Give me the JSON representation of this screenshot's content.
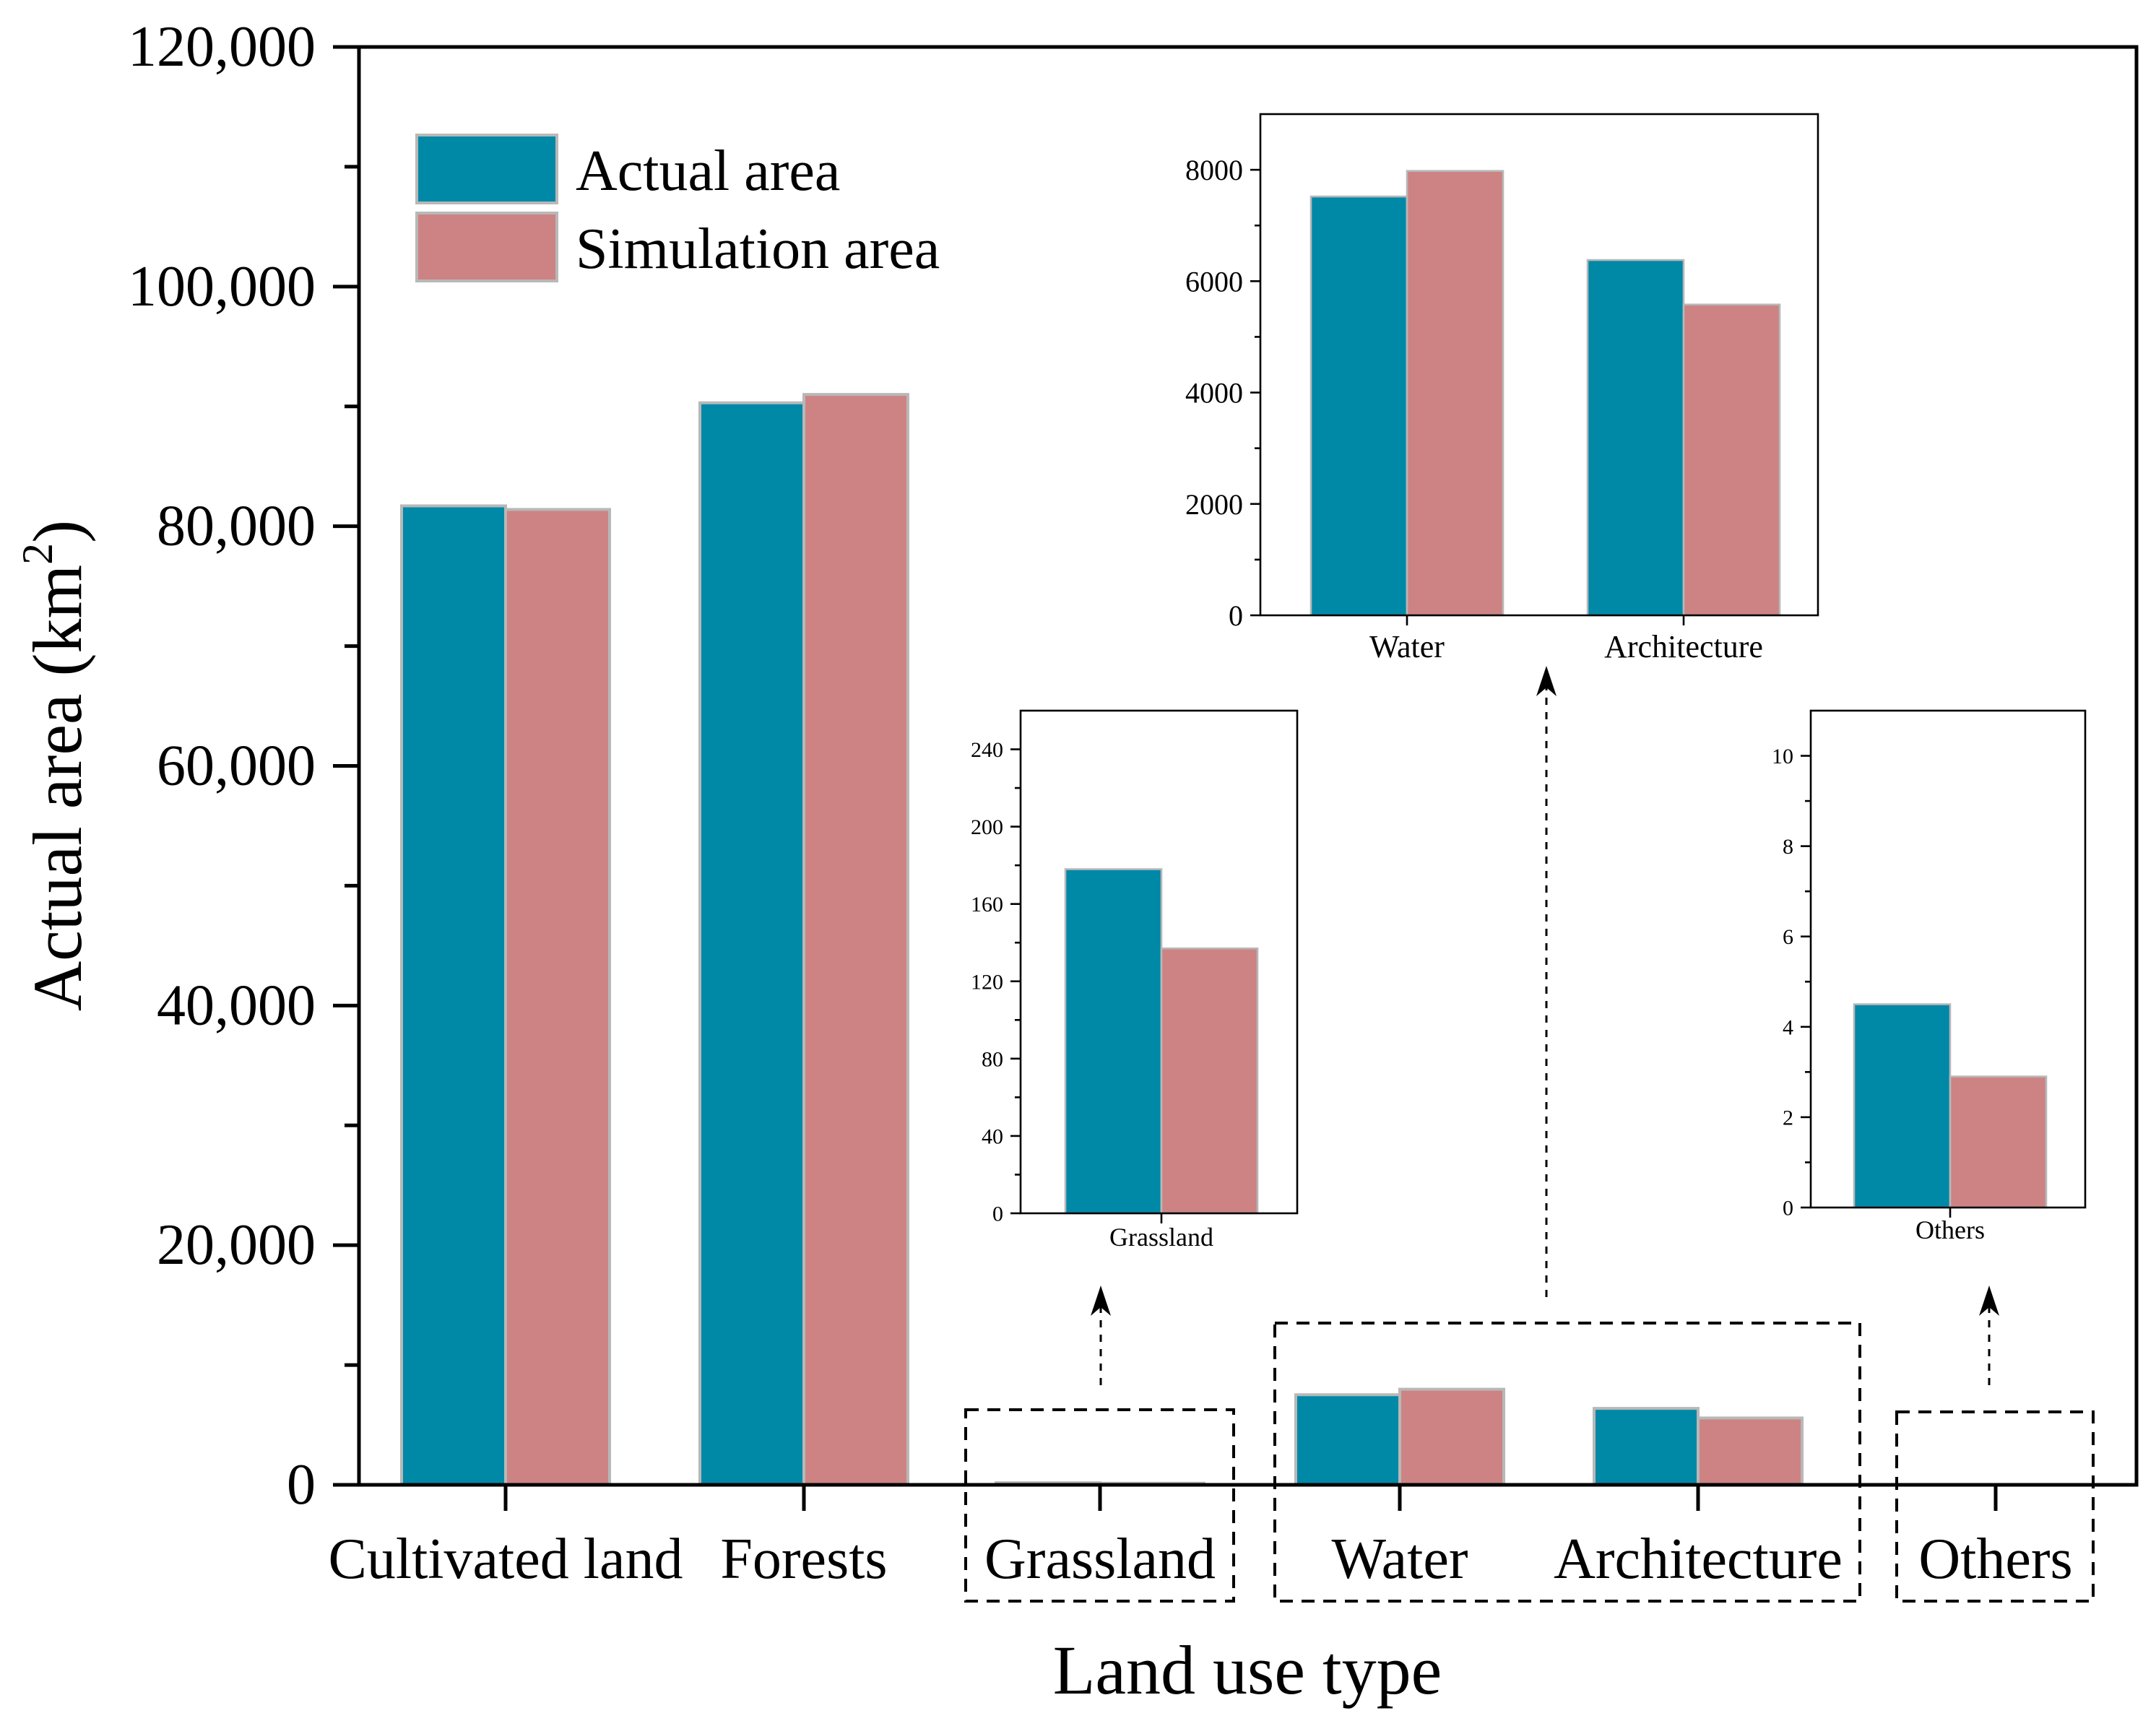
{
  "chart_data": {
    "type": "bar",
    "xlabel": "Land use type",
    "ylabel": "Actual area (km",
    "ylabel_superscript": "2",
    "ylabel_close": ")",
    "ylim": [
      0,
      120000
    ],
    "yticks": [
      0,
      20000,
      40000,
      60000,
      80000,
      100000,
      120000
    ],
    "ytick_labels": [
      "0",
      "20,000",
      "40,000",
      "60,000",
      "80,000",
      "100,000",
      "120,000"
    ],
    "categories": [
      "Cultivated land",
      "Forests",
      "Grassland",
      "Water",
      "Architecture",
      "Others"
    ],
    "series": [
      {
        "name": "Actual area",
        "color": "#0088a7",
        "values": [
          81700,
          90300,
          178,
          7520,
          6380,
          4.5
        ]
      },
      {
        "name": "Simulation area",
        "color": "#cd8383",
        "values": [
          81400,
          91000,
          137,
          7980,
          5580,
          2.9
        ]
      }
    ],
    "legend": {
      "position": "top-left",
      "entries": [
        "Actual area",
        "Simulation area"
      ]
    },
    "insets": [
      {
        "id": "water-architecture",
        "categories": [
          "Water",
          "Architecture"
        ],
        "ylim": [
          0,
          9000
        ],
        "yticks": [
          0,
          2000,
          4000,
          6000,
          8000
        ],
        "ytick_labels": [
          "0",
          "2000",
          "4000",
          "6000",
          "8000"
        ],
        "series": [
          {
            "name": "Actual area",
            "values": [
              7520,
              6380
            ]
          },
          {
            "name": "Simulation area",
            "values": [
              7980,
              5580
            ]
          }
        ]
      },
      {
        "id": "grassland",
        "categories": [
          "Grassland"
        ],
        "ylim": [
          0,
          260
        ],
        "yticks": [
          0,
          40,
          80,
          120,
          160,
          200,
          240
        ],
        "ytick_labels": [
          "0",
          "40",
          "80",
          "120",
          "160",
          "200",
          "240"
        ],
        "series": [
          {
            "name": "Actual area",
            "values": [
              178
            ]
          },
          {
            "name": "Simulation area",
            "values": [
              137
            ]
          }
        ]
      },
      {
        "id": "others",
        "categories": [
          "Others"
        ],
        "ylim": [
          0,
          11
        ],
        "yticks": [
          0,
          2,
          4,
          6,
          8,
          10
        ],
        "ytick_labels": [
          "0",
          "2",
          "4",
          "6",
          "8",
          "10"
        ],
        "series": [
          {
            "name": "Actual area",
            "values": [
              4.5
            ]
          },
          {
            "name": "Simulation area",
            "values": [
              2.9
            ]
          }
        ]
      }
    ]
  }
}
